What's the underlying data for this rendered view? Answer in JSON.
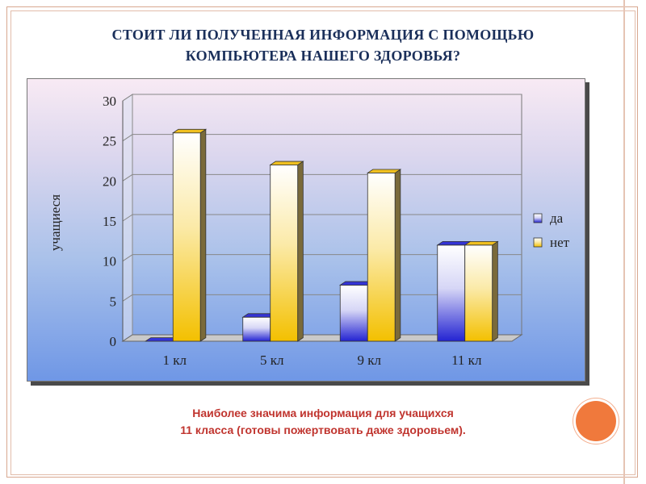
{
  "slide": {
    "title_line1": "СТОИТ ЛИ ПОЛУЧЕННАЯ ИНФОРМАЦИЯ С ПОМОЩЬЮ",
    "title_line2": "КОМПЬЮТЕРА НАШЕГО ЗДОРОВЬЯ?",
    "caption_line1": "Наиболее значима информация для учащихся",
    "caption_line2": "11 класса (готовы пожертвовать даже здоровьем)."
  },
  "colors": {
    "title": "#1a2f5a",
    "caption": "#c0342e",
    "series_da": "#2b2bd8",
    "series_net": "#f2c200",
    "accent_circle": "#f0793c"
  },
  "chart_data": {
    "type": "bar",
    "categories": [
      "1 кл",
      "5 кл",
      "9 кл",
      "11 кл"
    ],
    "series": [
      {
        "name": "да",
        "values": [
          0,
          3,
          7,
          12
        ]
      },
      {
        "name": "нет",
        "values": [
          26,
          22,
          21,
          12
        ]
      }
    ],
    "ylabel": "учащиеся",
    "xlabel": "",
    "ylim": [
      0,
      30
    ],
    "yticks": [
      "0",
      "5",
      "10",
      "15",
      "20",
      "25",
      "30"
    ],
    "grid": true,
    "legend": "right",
    "three_d": true
  }
}
